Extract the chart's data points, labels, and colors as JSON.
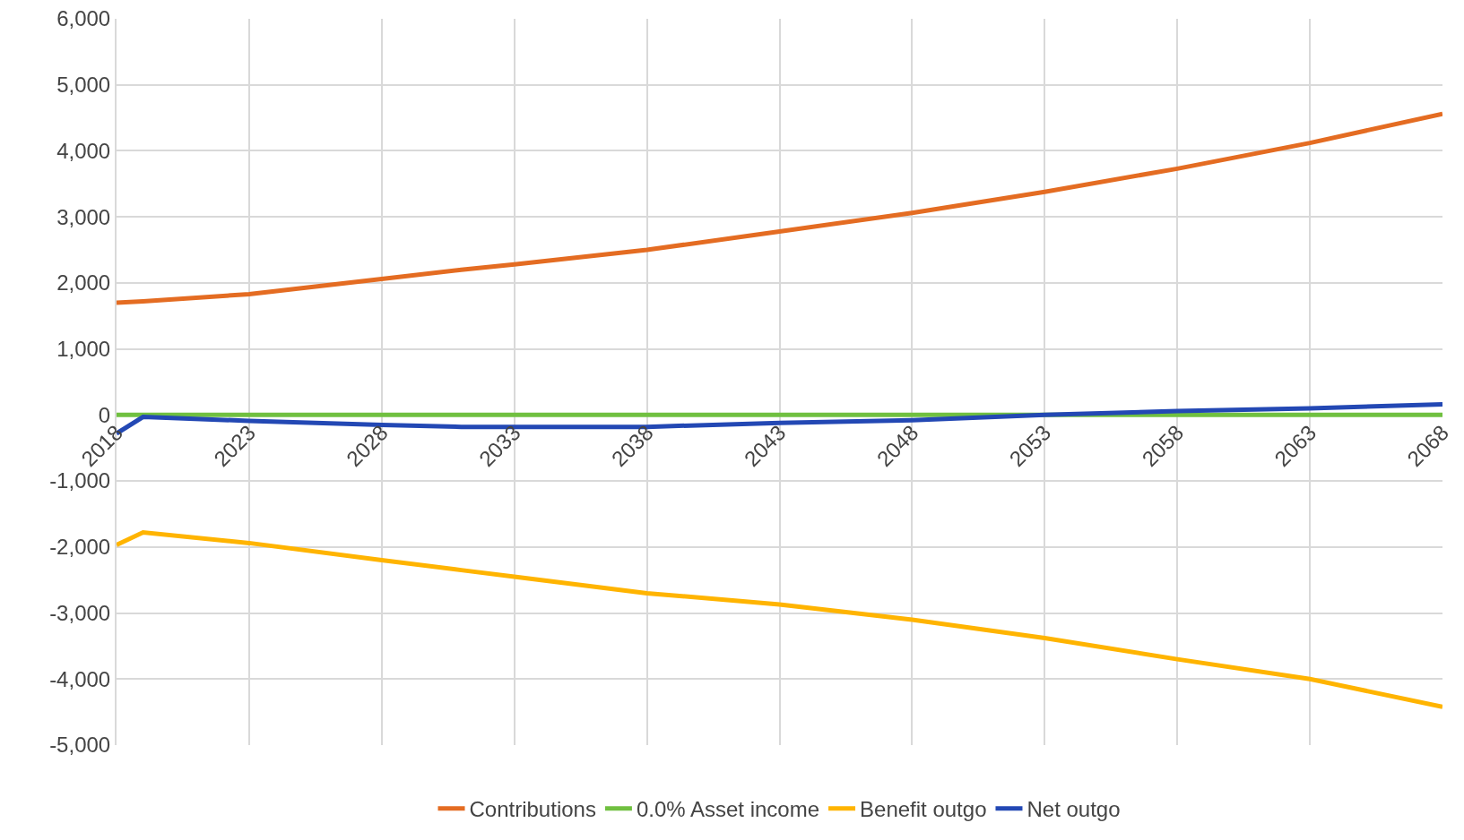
{
  "chart_data": {
    "type": "line",
    "x": [
      2018,
      2019,
      2023,
      2028,
      2031,
      2033,
      2038,
      2043,
      2048,
      2053,
      2058,
      2063,
      2068
    ],
    "series": [
      {
        "name": "Contributions",
        "color": "#e46c22",
        "values": [
          1700,
          1720,
          1830,
          2060,
          2200,
          2280,
          2500,
          2780,
          3060,
          3380,
          3730,
          4120,
          4560
        ]
      },
      {
        "name": "0.0% Asset income",
        "color": "#70c040",
        "values": [
          0,
          0,
          0,
          0,
          0,
          0,
          0,
          0,
          0,
          0,
          0,
          0,
          0
        ]
      },
      {
        "name": "Benefit outgo",
        "color": "#ffb400",
        "values": [
          -1970,
          -1780,
          -1940,
          -2200,
          -2350,
          -2450,
          -2700,
          -2870,
          -3100,
          -3380,
          -3700,
          -4000,
          -4420
        ]
      },
      {
        "name": "Net outgo",
        "color": "#2348b4",
        "values": [
          -280,
          -30,
          -90,
          -150,
          -180,
          -180,
          -180,
          -120,
          -80,
          0,
          60,
          100,
          160
        ]
      }
    ],
    "xlim": [
      2018,
      2068
    ],
    "xticks": [
      2018,
      2023,
      2028,
      2033,
      2038,
      2043,
      2048,
      2053,
      2058,
      2063,
      2068
    ],
    "ylim": [
      -5000,
      6000
    ],
    "yticks": [
      {
        "value": -5000,
        "label": "-5,000"
      },
      {
        "value": -4000,
        "label": "-4,000"
      },
      {
        "value": -3000,
        "label": "-3,000"
      },
      {
        "value": -2000,
        "label": "-2,000"
      },
      {
        "value": -1000,
        "label": "-1,000"
      },
      0,
      {
        "value": 1000,
        "label": "1,000"
      },
      {
        "value": 2000,
        "label": "2,000"
      },
      {
        "value": 3000,
        "label": "3,000"
      },
      {
        "value": 4000,
        "label": "4,000"
      },
      {
        "value": 5000,
        "label": "5,000"
      },
      {
        "value": 6000,
        "label": "6,000"
      }
    ],
    "grid": true,
    "legend": "bottom",
    "marker": "none",
    "line_style": "solid"
  }
}
